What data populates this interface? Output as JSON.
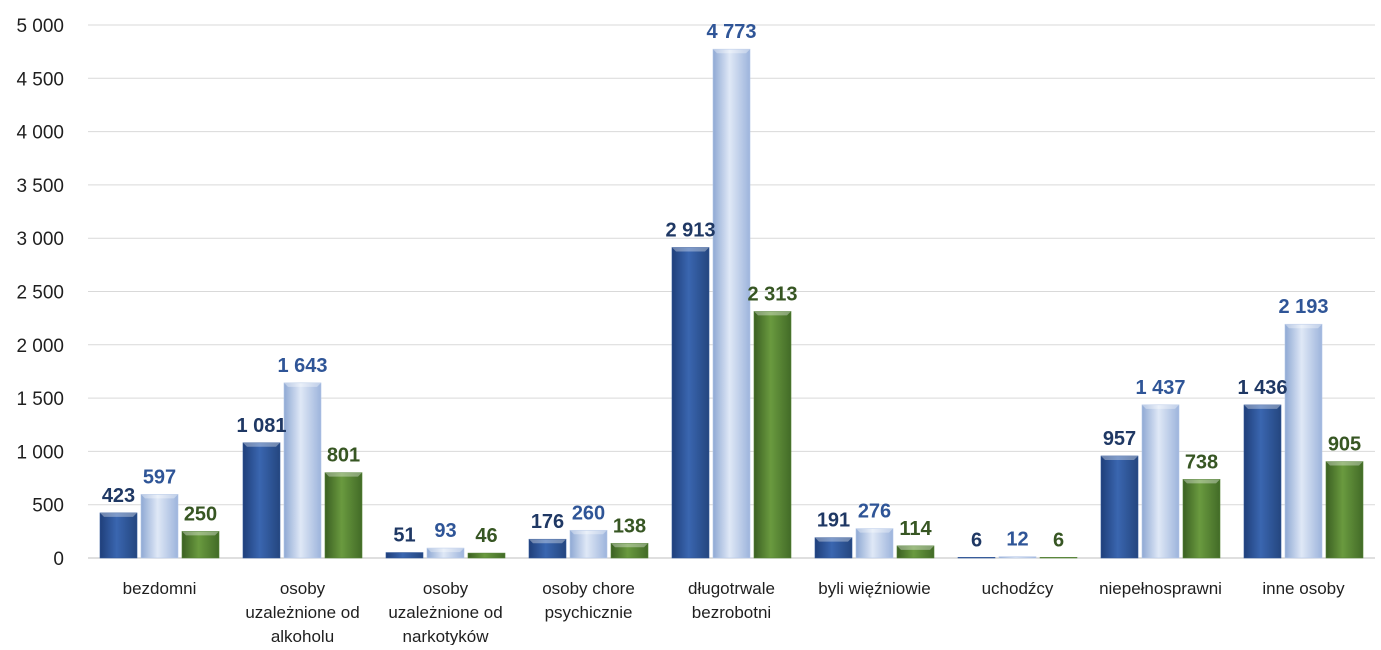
{
  "chart_data": {
    "type": "bar",
    "title": "",
    "xlabel": "",
    "ylabel": "",
    "ylim": [
      0,
      5000
    ],
    "y_ticks": [
      "0",
      "500",
      "1 000",
      "1 500",
      "2 000",
      "2 500",
      "3 000",
      "3 500",
      "4 000",
      "4 500",
      "5 000"
    ],
    "y_tick_values": [
      0,
      500,
      1000,
      1500,
      2000,
      2500,
      3000,
      3500,
      4000,
      4500,
      5000
    ],
    "grid": true,
    "legend": "none",
    "categories": [
      [
        "bezdomni"
      ],
      [
        "osoby",
        "uzależnione od",
        "alkoholu"
      ],
      [
        "osoby",
        "uzależnione od",
        "narkotyków"
      ],
      [
        "osoby chore",
        "psychicznie"
      ],
      [
        "długotrwale",
        "bezrobotni"
      ],
      [
        "byli więźniowie"
      ],
      [
        "uchodźcy"
      ],
      [
        "niepełnosprawni"
      ],
      [
        "inne osoby"
      ]
    ],
    "series": [
      {
        "values": [
          423,
          1081,
          51,
          176,
          2913,
          191,
          6,
          957,
          1436
        ],
        "labels": [
          "423",
          "1 081",
          "51",
          "176",
          "2 913",
          "191",
          "6",
          "957",
          "1 436"
        ],
        "color": "#2f5597",
        "label_color": "#1f3864"
      },
      {
        "values": [
          597,
          1643,
          93,
          260,
          4773,
          276,
          12,
          1437,
          2193
        ],
        "labels": [
          "597",
          "1 643",
          "93",
          "260",
          "4 773",
          "276",
          "12",
          "1 437",
          "2 193"
        ],
        "color": "#b4c7e7",
        "label_color": "#2f5597"
      },
      {
        "values": [
          250,
          801,
          46,
          138,
          2313,
          114,
          6,
          738,
          905
        ],
        "labels": [
          "250",
          "801",
          "46",
          "138",
          "2 313",
          "114",
          "6",
          "738",
          "905"
        ],
        "color": "#548235",
        "label_color": "#375623"
      }
    ]
  }
}
